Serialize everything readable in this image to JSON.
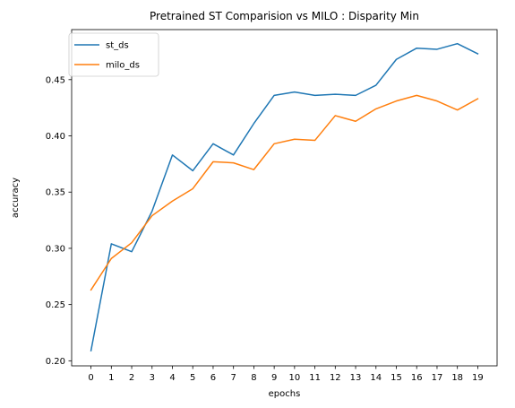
{
  "chart_data": {
    "type": "line",
    "title": "Pretrained ST Comparision vs MILO : Disparity Min",
    "xlabel": "epochs",
    "ylabel": "accuracy",
    "x": [
      0,
      1,
      2,
      3,
      4,
      5,
      6,
      7,
      8,
      9,
      10,
      11,
      12,
      13,
      14,
      15,
      16,
      17,
      18,
      19
    ],
    "xlim": [
      -0.95,
      19.95
    ],
    "ylim": [
      0.1955,
      0.4945
    ],
    "yticks": [
      0.2,
      0.25,
      0.3,
      0.35,
      0.4,
      0.45
    ],
    "ytick_labels": [
      "0.20",
      "0.25",
      "0.30",
      "0.35",
      "0.40",
      "0.45"
    ],
    "grid": false,
    "legend_position": "upper left",
    "series": [
      {
        "name": "st_ds",
        "color": "#1f77b4",
        "values": [
          0.209,
          0.304,
          0.297,
          0.333,
          0.383,
          0.369,
          0.393,
          0.383,
          0.411,
          0.436,
          0.439,
          0.436,
          0.437,
          0.436,
          0.445,
          0.468,
          0.478,
          0.477,
          0.482,
          0.473
        ]
      },
      {
        "name": "milo_ds",
        "color": "#ff7f0e",
        "values": [
          0.263,
          0.291,
          0.305,
          0.329,
          0.342,
          0.353,
          0.377,
          0.376,
          0.37,
          0.393,
          0.397,
          0.396,
          0.418,
          0.413,
          0.424,
          0.431,
          0.436,
          0.431,
          0.423,
          0.433
        ]
      }
    ]
  }
}
